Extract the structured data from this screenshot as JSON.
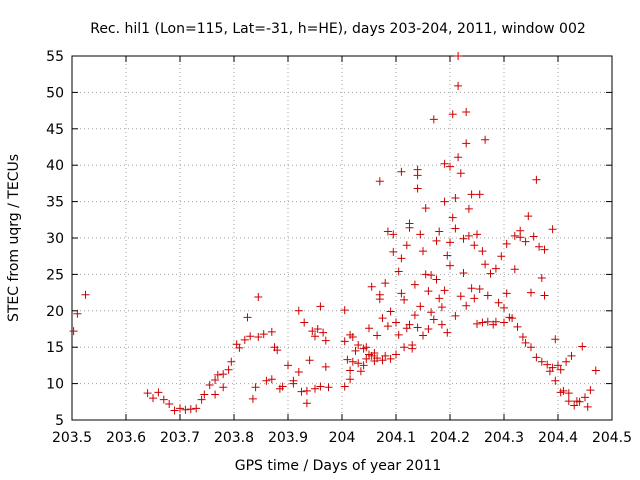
{
  "chart_data": {
    "type": "scatter",
    "title": "Rec. hil1 (Lon=115, Lat=-31, h=HE), days 203-204, 2011, window 002",
    "xlabel": "GPS time / Days of year 2011",
    "ylabel": "STEC from uqrg / TECUs",
    "xlim": [
      203.5,
      204.5
    ],
    "ylim": [
      5,
      55
    ],
    "xticks": [
      "203.5",
      "203.6",
      "203.7",
      "203.8",
      "203.9",
      "204",
      "204.1",
      "204.2",
      "204.3",
      "204.4",
      "204.5"
    ],
    "yticks": [
      "5",
      "10",
      "15",
      "20",
      "25",
      "30",
      "35",
      "40",
      "45",
      "50",
      "55"
    ],
    "grid": true,
    "marker": "+",
    "color": "#cc0000",
    "points": [
      [
        203.503,
        17.2
      ],
      [
        203.51,
        19.6
      ],
      [
        203.525,
        22.2
      ],
      [
        203.64,
        8.7
      ],
      [
        203.65,
        8.0
      ],
      [
        203.66,
        8.8
      ],
      [
        203.67,
        7.8
      ],
      [
        203.68,
        7.2
      ],
      [
        203.69,
        6.3
      ],
      [
        203.7,
        6.6
      ],
      [
        203.71,
        6.4
      ],
      [
        203.72,
        6.5
      ],
      [
        203.73,
        6.6
      ],
      [
        203.74,
        7.8
      ],
      [
        203.745,
        8.5
      ],
      [
        203.755,
        9.8
      ],
      [
        203.765,
        10.5
      ],
      [
        203.77,
        11.2
      ],
      [
        203.765,
        8.5
      ],
      [
        203.78,
        9.5
      ],
      [
        203.78,
        11.3
      ],
      [
        203.79,
        11.9
      ],
      [
        203.795,
        13.0
      ],
      [
        203.805,
        15.4
      ],
      [
        203.81,
        14.9
      ],
      [
        203.82,
        16.0
      ],
      [
        203.825,
        19.1
      ],
      [
        203.83,
        16.5
      ],
      [
        203.835,
        7.9
      ],
      [
        203.84,
        9.5
      ],
      [
        203.845,
        21.9
      ],
      [
        203.845,
        16.4
      ],
      [
        203.855,
        16.8
      ],
      [
        203.86,
        10.4
      ],
      [
        203.87,
        10.6
      ],
      [
        203.87,
        17.1
      ],
      [
        203.875,
        15.0
      ],
      [
        203.88,
        14.6
      ],
      [
        203.885,
        9.3
      ],
      [
        203.89,
        9.6
      ],
      [
        203.9,
        12.5
      ],
      [
        203.91,
        10.0
      ],
      [
        203.91,
        10.4
      ],
      [
        203.92,
        11.6
      ],
      [
        203.92,
        20.0
      ],
      [
        203.925,
        8.9
      ],
      [
        203.93,
        18.4
      ],
      [
        203.935,
        7.3
      ],
      [
        203.935,
        9.0
      ],
      [
        203.94,
        13.2
      ],
      [
        203.945,
        17.2
      ],
      [
        203.95,
        9.3
      ],
      [
        203.95,
        16.5
      ],
      [
        203.955,
        17.5
      ],
      [
        203.96,
        9.6
      ],
      [
        203.96,
        20.6
      ],
      [
        203.965,
        17.0
      ],
      [
        203.97,
        15.9
      ],
      [
        203.97,
        12.3
      ],
      [
        203.975,
        9.5
      ],
      [
        204.005,
        9.6
      ],
      [
        204.005,
        20.1
      ],
      [
        204.005,
        15.8
      ],
      [
        204.01,
        13.3
      ],
      [
        204.015,
        16.7
      ],
      [
        204.015,
        11.8
      ],
      [
        204.015,
        10.6
      ],
      [
        204.02,
        13.0
      ],
      [
        204.02,
        16.4
      ],
      [
        204.025,
        14.5
      ],
      [
        204.03,
        12.8
      ],
      [
        204.03,
        15.3
      ],
      [
        204.035,
        11.7
      ],
      [
        204.04,
        14.8
      ],
      [
        204.04,
        12.5
      ],
      [
        204.045,
        13.4
      ],
      [
        204.045,
        15.0
      ],
      [
        204.05,
        14.0
      ],
      [
        204.05,
        17.6
      ],
      [
        204.055,
        13.8
      ],
      [
        204.055,
        23.3
      ],
      [
        204.06,
        13.1
      ],
      [
        204.06,
        14.2
      ],
      [
        204.065,
        13.5
      ],
      [
        204.065,
        16.6
      ],
      [
        204.07,
        37.8
      ],
      [
        204.07,
        21.6
      ],
      [
        204.07,
        22.2
      ],
      [
        204.075,
        13.2
      ],
      [
        204.075,
        19.0
      ],
      [
        204.08,
        13.8
      ],
      [
        204.08,
        23.8
      ],
      [
        204.085,
        30.9
      ],
      [
        204.085,
        17.9
      ],
      [
        204.09,
        13.4
      ],
      [
        204.09,
        19.9
      ],
      [
        204.095,
        30.5
      ],
      [
        204.095,
        28.1
      ],
      [
        204.1,
        14.0
      ],
      [
        204.1,
        18.4
      ],
      [
        204.105,
        25.4
      ],
      [
        204.105,
        16.7
      ],
      [
        204.11,
        39.1
      ],
      [
        204.11,
        27.2
      ],
      [
        204.11,
        22.4
      ],
      [
        204.115,
        15.0
      ],
      [
        204.115,
        21.5
      ],
      [
        204.12,
        29.0
      ],
      [
        204.12,
        17.6
      ],
      [
        204.125,
        32.0
      ],
      [
        204.125,
        31.4
      ],
      [
        204.125,
        18.1
      ],
      [
        204.13,
        15.3
      ],
      [
        204.13,
        14.8
      ],
      [
        204.135,
        23.6
      ],
      [
        204.135,
        19.4
      ],
      [
        204.14,
        39.4
      ],
      [
        204.14,
        36.8
      ],
      [
        204.14,
        38.6
      ],
      [
        204.14,
        17.7
      ],
      [
        204.145,
        30.5
      ],
      [
        204.145,
        20.6
      ],
      [
        204.15,
        16.6
      ],
      [
        204.15,
        28.2
      ],
      [
        204.155,
        34.1
      ],
      [
        204.155,
        25.0
      ],
      [
        204.16,
        17.5
      ],
      [
        204.16,
        22.7
      ],
      [
        204.165,
        24.9
      ],
      [
        204.165,
        19.8
      ],
      [
        204.17,
        46.3
      ],
      [
        204.17,
        18.8
      ],
      [
        204.175,
        29.6
      ],
      [
        204.175,
        24.3
      ],
      [
        204.18,
        30.9
      ],
      [
        204.18,
        21.7
      ],
      [
        204.185,
        20.5
      ],
      [
        204.185,
        18.1
      ],
      [
        204.19,
        40.2
      ],
      [
        204.19,
        35.0
      ],
      [
        204.19,
        22.8
      ],
      [
        204.195,
        27.6
      ],
      [
        204.195,
        17.0
      ],
      [
        204.2,
        39.8
      ],
      [
        204.2,
        29.4
      ],
      [
        204.2,
        26.2
      ],
      [
        204.205,
        47.0
      ],
      [
        204.205,
        32.8
      ],
      [
        204.21,
        31.3
      ],
      [
        204.21,
        19.3
      ],
      [
        204.21,
        35.5
      ],
      [
        204.215,
        55.0
      ],
      [
        204.215,
        50.9
      ],
      [
        204.215,
        41.1
      ],
      [
        204.22,
        38.9
      ],
      [
        204.22,
        22.0
      ],
      [
        204.225,
        29.9
      ],
      [
        204.225,
        25.2
      ],
      [
        204.23,
        47.3
      ],
      [
        204.23,
        43.0
      ],
      [
        204.23,
        20.7
      ],
      [
        204.235,
        34.0
      ],
      [
        204.235,
        30.3
      ],
      [
        204.24,
        36.0
      ],
      [
        204.24,
        23.1
      ],
      [
        204.245,
        29.0
      ],
      [
        204.245,
        21.7
      ],
      [
        204.25,
        30.5
      ],
      [
        204.25,
        18.2
      ],
      [
        204.255,
        36.0
      ],
      [
        204.255,
        23.0
      ],
      [
        204.26,
        28.2
      ],
      [
        204.26,
        18.4
      ],
      [
        204.265,
        43.5
      ],
      [
        204.265,
        26.4
      ],
      [
        204.27,
        22.1
      ],
      [
        204.27,
        18.5
      ],
      [
        204.275,
        25.1
      ],
      [
        204.28,
        18.1
      ],
      [
        204.285,
        25.8
      ],
      [
        204.285,
        18.5
      ],
      [
        204.29,
        21.1
      ],
      [
        204.295,
        27.5
      ],
      [
        204.3,
        18.4
      ],
      [
        204.3,
        20.4
      ],
      [
        204.305,
        22.4
      ],
      [
        204.305,
        29.2
      ],
      [
        204.31,
        19.1
      ],
      [
        204.315,
        19.0
      ],
      [
        204.32,
        30.3
      ],
      [
        204.32,
        25.7
      ],
      [
        204.325,
        17.8
      ],
      [
        204.33,
        30.1
      ],
      [
        204.33,
        31.0
      ],
      [
        204.335,
        16.4
      ],
      [
        204.34,
        29.5
      ],
      [
        204.34,
        15.6
      ],
      [
        204.345,
        33.0
      ],
      [
        204.35,
        22.5
      ],
      [
        204.35,
        15.0
      ],
      [
        204.355,
        30.2
      ],
      [
        204.36,
        38.0
      ],
      [
        204.36,
        13.6
      ],
      [
        204.365,
        28.8
      ],
      [
        204.37,
        24.5
      ],
      [
        204.37,
        13.0
      ],
      [
        204.375,
        22.1
      ],
      [
        204.375,
        28.4
      ],
      [
        204.38,
        12.6
      ],
      [
        204.385,
        11.7
      ],
      [
        204.39,
        31.2
      ],
      [
        204.39,
        12.2
      ],
      [
        204.395,
        16.1
      ],
      [
        204.395,
        10.4
      ],
      [
        204.4,
        12.5
      ],
      [
        204.405,
        8.8
      ],
      [
        204.405,
        11.9
      ],
      [
        204.41,
        9.0
      ],
      [
        204.415,
        13.0
      ],
      [
        204.42,
        7.6
      ],
      [
        204.42,
        8.7
      ],
      [
        204.425,
        13.8
      ],
      [
        204.43,
        7.0
      ],
      [
        204.435,
        7.6
      ],
      [
        204.44,
        7.5
      ],
      [
        204.445,
        15.1
      ],
      [
        204.45,
        8.1
      ],
      [
        204.455,
        6.8
      ],
      [
        204.46,
        9.1
      ],
      [
        204.47,
        11.8
      ]
    ]
  }
}
